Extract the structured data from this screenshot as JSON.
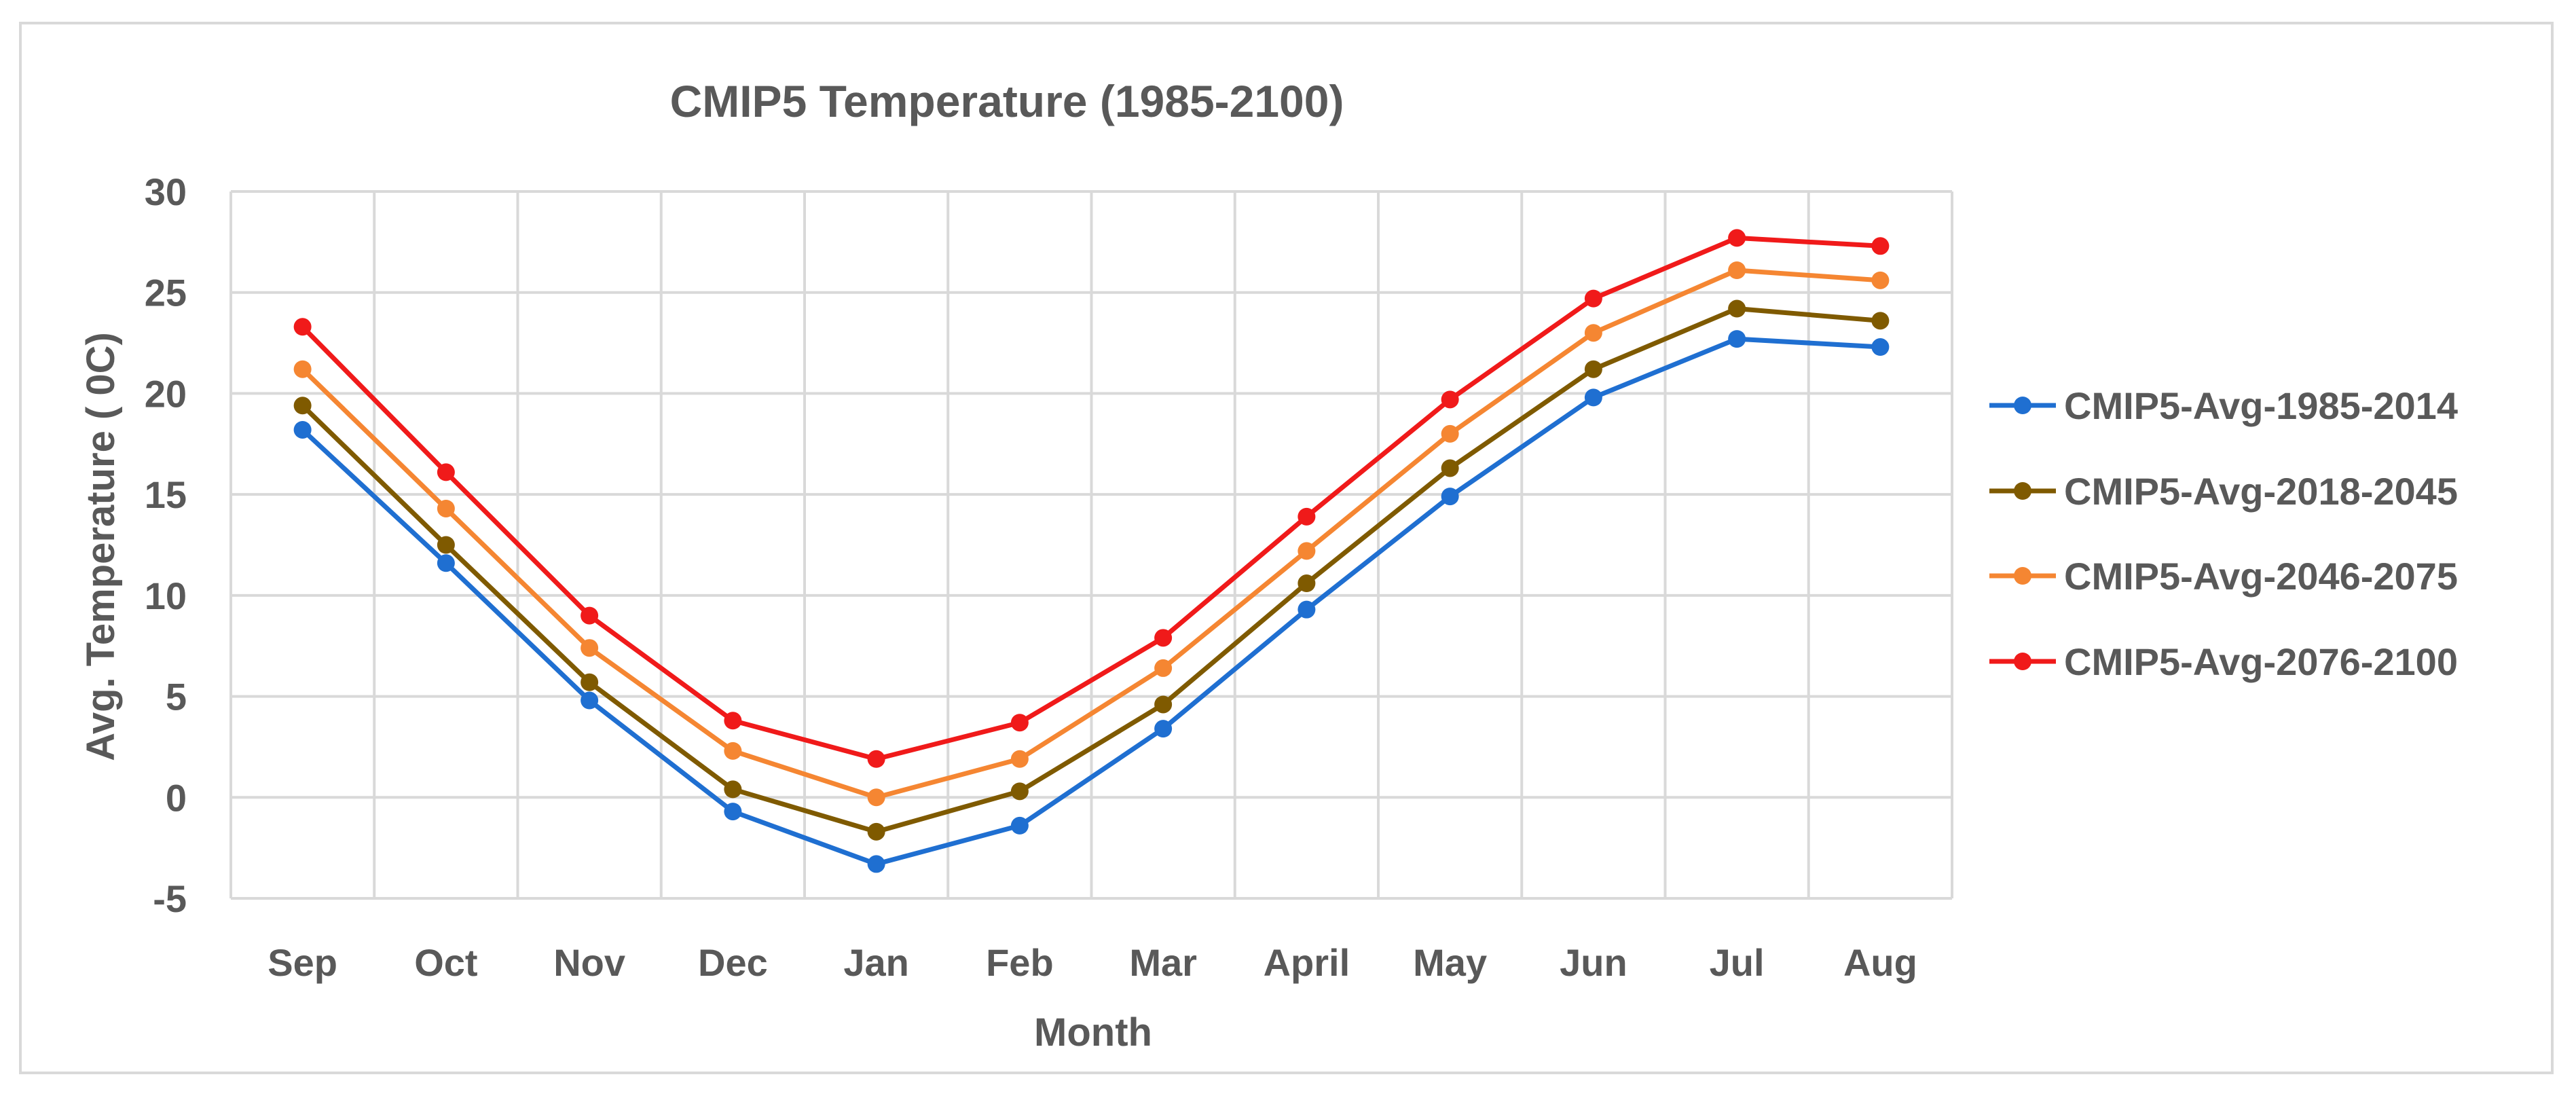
{
  "chart_data": {
    "type": "line",
    "title": "CMIP5 Temperature (1985-2100)",
    "xlabel": "Month",
    "ylabel": "Avg. Temperature ( 0C)",
    "ylim": [
      -5,
      30
    ],
    "yticks": [
      "30",
      "25",
      "20",
      "15",
      "10",
      "5",
      "0",
      "-5"
    ],
    "ytick_values": [
      30,
      25,
      20,
      15,
      10,
      5,
      0,
      -5
    ],
    "grid": true,
    "legend_position": "right",
    "categories": [
      "Sep",
      "Oct",
      "Nov",
      "Dec",
      "Jan",
      "Feb",
      "Mar",
      "April",
      "May",
      "Jun",
      "Jul",
      "Aug"
    ],
    "series": [
      {
        "name": "CMIP5-Avg-1985-2014",
        "color": "#1f6fd1",
        "values": [
          18.2,
          11.6,
          4.8,
          -0.7,
          -3.3,
          -1.4,
          3.4,
          9.3,
          14.9,
          19.8,
          22.7,
          22.3
        ]
      },
      {
        "name": "CMIP5-Avg-2018-2045",
        "color": "#7f5a00",
        "values": [
          19.4,
          12.5,
          5.7,
          0.4,
          -1.7,
          0.3,
          4.6,
          10.6,
          16.3,
          21.2,
          24.2,
          23.6
        ]
      },
      {
        "name": "CMIP5-Avg-2046-2075",
        "color": "#f58632",
        "values": [
          21.2,
          14.3,
          7.4,
          2.3,
          0.0,
          1.9,
          6.4,
          12.2,
          18.0,
          23.0,
          26.1,
          25.6
        ]
      },
      {
        "name": "CMIP5-Avg-2076-2100",
        "color": "#f01a1a",
        "values": [
          23.3,
          16.1,
          9.0,
          3.8,
          1.9,
          3.7,
          7.9,
          13.9,
          19.7,
          24.7,
          27.7,
          27.3
        ]
      }
    ]
  }
}
